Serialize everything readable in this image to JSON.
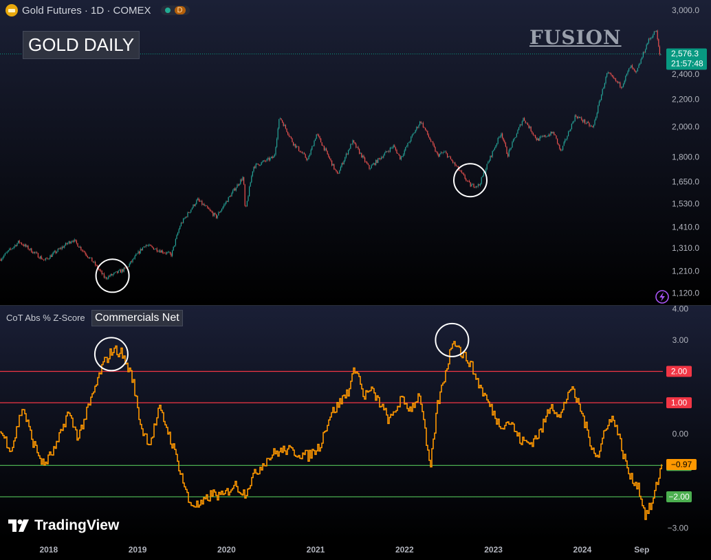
{
  "header": {
    "symbol": "Gold Futures · 1D · COMEX",
    "interval_badge": "D",
    "chart_label": "GOLD DAILY",
    "watermark": "FUSION"
  },
  "indicator": {
    "name": "CoT Abs % Z-Score",
    "series_label": "Commercials Net"
  },
  "branding": {
    "logo_text": "TradingView"
  },
  "colors": {
    "up": "#26a69a",
    "down": "#ef5350",
    "zscore_line": "#ff9800",
    "upper_levels": "#f23645",
    "lower_levels": "#4caf50",
    "price_badge": "#089981"
  },
  "chart_data": [
    {
      "type": "candlestick",
      "series": [
        {
          "name": "Gold Futures"
        }
      ],
      "scale": "log",
      "ylim": [
        1090,
        3050
      ],
      "y_ticks": [
        3000,
        2400,
        2200,
        2000,
        1800,
        1650,
        1530,
        1410,
        1310,
        1210,
        1120
      ],
      "y_tick_labels": [
        "3,000.0",
        "2,400.0",
        "2,200.0",
        "2,000.0",
        "1,800.0",
        "1,650.0",
        "1,530.0",
        "1,410.0",
        "1,310.0",
        "1,210.0",
        "1,120.0"
      ],
      "x": [
        "2017-06-15",
        "2017-09-01",
        "2017-12-15",
        "2018-04-10",
        "2018-07-01",
        "2018-08-20",
        "2018-11-15",
        "2019-01-31",
        "2019-05-20",
        "2019-06-25",
        "2019-09-04",
        "2019-11-20",
        "2020-01-10",
        "2020-03-10",
        "2020-03-18",
        "2020-04-20",
        "2020-07-15",
        "2020-08-06",
        "2020-09-30",
        "2020-11-30",
        "2021-01-05",
        "2021-03-31",
        "2021-06-01",
        "2021-08-09",
        "2021-11-16",
        "2021-12-15",
        "2022-03-08",
        "2022-05-16",
        "2022-06-15",
        "2022-09-28",
        "2022-11-03",
        "2023-02-02",
        "2023-02-28",
        "2023-05-04",
        "2023-06-29",
        "2023-09-05",
        "2023-10-05",
        "2023-12-04",
        "2024-02-14",
        "2024-04-12",
        "2024-06-10",
        "2024-07-17",
        "2024-08-08",
        "2024-09-26",
        "2024-10-30",
        "2024-11-13",
        "2024-11-21"
      ],
      "close": [
        1260,
        1340,
        1255,
        1350,
        1250,
        1180,
        1220,
        1325,
        1280,
        1420,
        1550,
        1460,
        1560,
        1680,
        1480,
        1740,
        1800,
        2070,
        1890,
        1780,
        1950,
        1690,
        1900,
        1730,
        1870,
        1790,
        2040,
        1810,
        1830,
        1630,
        1630,
        1960,
        1810,
        2060,
        1910,
        1960,
        1830,
        2080,
        1990,
        2410,
        2300,
        2470,
        2400,
        2690,
        2800,
        2570,
        2576.3
      ],
      "last_price": "2,576.3",
      "countdown": "21:57:48",
      "annotations": [
        "circle at 2018 low",
        "circle at 2022 low"
      ]
    },
    {
      "type": "line",
      "series": [
        {
          "name": "Commercials Net"
        }
      ],
      "ylim": [
        -3.25,
        4.05
      ],
      "y_ticks": [
        4,
        3,
        0,
        -3
      ],
      "y_tick_labels": [
        "4.00",
        "3.00",
        "0.00",
        "−3.00"
      ],
      "levels": [
        {
          "value": 2,
          "label": "2.00",
          "color": "#f23645"
        },
        {
          "value": 1,
          "label": "1.00",
          "color": "#f23645"
        },
        {
          "value": -1,
          "label": "−1.00",
          "color": "#4caf50"
        },
        {
          "value": -2,
          "label": "−2.00",
          "color": "#4caf50"
        }
      ],
      "x": [
        "2017-06-15",
        "2017-08-01",
        "2017-09-15",
        "2017-10-25",
        "2017-12-10",
        "2018-02-01",
        "2018-03-20",
        "2018-05-01",
        "2018-06-20",
        "2018-08-10",
        "2018-09-20",
        "2018-10-25",
        "2018-12-10",
        "2019-01-15",
        "2019-02-20",
        "2019-03-31",
        "2019-05-01",
        "2019-06-15",
        "2019-07-31",
        "2019-09-15",
        "2019-11-01",
        "2019-12-15",
        "2020-02-01",
        "2020-03-15",
        "2020-04-15",
        "2020-06-01",
        "2020-07-15",
        "2020-09-01",
        "2020-10-15",
        "2020-12-01",
        "2021-01-15",
        "2021-02-28",
        "2021-03-31",
        "2021-05-15",
        "2021-06-15",
        "2021-07-15",
        "2021-08-15",
        "2021-09-20",
        "2021-10-31",
        "2021-12-15",
        "2022-01-25",
        "2022-03-05",
        "2022-04-15",
        "2022-05-15",
        "2022-06-25",
        "2022-07-20",
        "2022-08-20",
        "2022-09-25",
        "2022-11-01",
        "2022-12-10",
        "2023-01-25",
        "2023-03-10",
        "2023-04-20",
        "2023-06-01",
        "2023-07-15",
        "2023-08-25",
        "2023-10-01",
        "2023-11-10",
        "2023-12-20",
        "2024-01-31",
        "2024-03-05",
        "2024-04-05",
        "2024-05-10",
        "2024-06-15",
        "2024-07-15",
        "2024-08-15",
        "2024-09-15",
        "2024-10-15",
        "2024-11-01",
        "2024-11-21"
      ],
      "values": [
        0.1,
        -0.5,
        0.9,
        -0.2,
        -1.0,
        -0.4,
        0.7,
        -0.1,
        1.0,
        2.2,
        2.7,
        2.6,
        1.8,
        0.2,
        -0.3,
        0.8,
        0.2,
        -0.9,
        -2.2,
        -2.3,
        -1.9,
        -2.0,
        -1.6,
        -1.9,
        -1.4,
        -0.9,
        -0.6,
        -0.5,
        -0.6,
        -0.7,
        -0.4,
        0.6,
        0.9,
        1.4,
        2.2,
        1.2,
        1.4,
        1.0,
        0.4,
        1.1,
        0.8,
        1.3,
        -1.2,
        0.9,
        2.2,
        3.1,
        2.6,
        2.3,
        1.6,
        1.0,
        0.3,
        0.4,
        -0.2,
        -0.3,
        0.1,
        1.0,
        0.5,
        1.5,
        0.9,
        -0.2,
        -0.8,
        0.3,
        0.5,
        -0.6,
        -1.4,
        -1.6,
        -2.6,
        -2.2,
        -1.6,
        -0.97
      ],
      "last_value": "−0.97",
      "annotations": [
        "circle at 2018 peak",
        "circle at 2022 peak"
      ]
    }
  ],
  "x_axis": {
    "labels": [
      {
        "date": "2018-01-01",
        "text": "2018"
      },
      {
        "date": "2019-01-01",
        "text": "2019"
      },
      {
        "date": "2020-01-01",
        "text": "2020"
      },
      {
        "date": "2021-01-01",
        "text": "2021"
      },
      {
        "date": "2022-01-01",
        "text": "2022"
      },
      {
        "date": "2023-01-01",
        "text": "2023"
      },
      {
        "date": "2024-01-01",
        "text": "2024"
      },
      {
        "date": "2024-09-01",
        "text": "Sep"
      }
    ]
  }
}
